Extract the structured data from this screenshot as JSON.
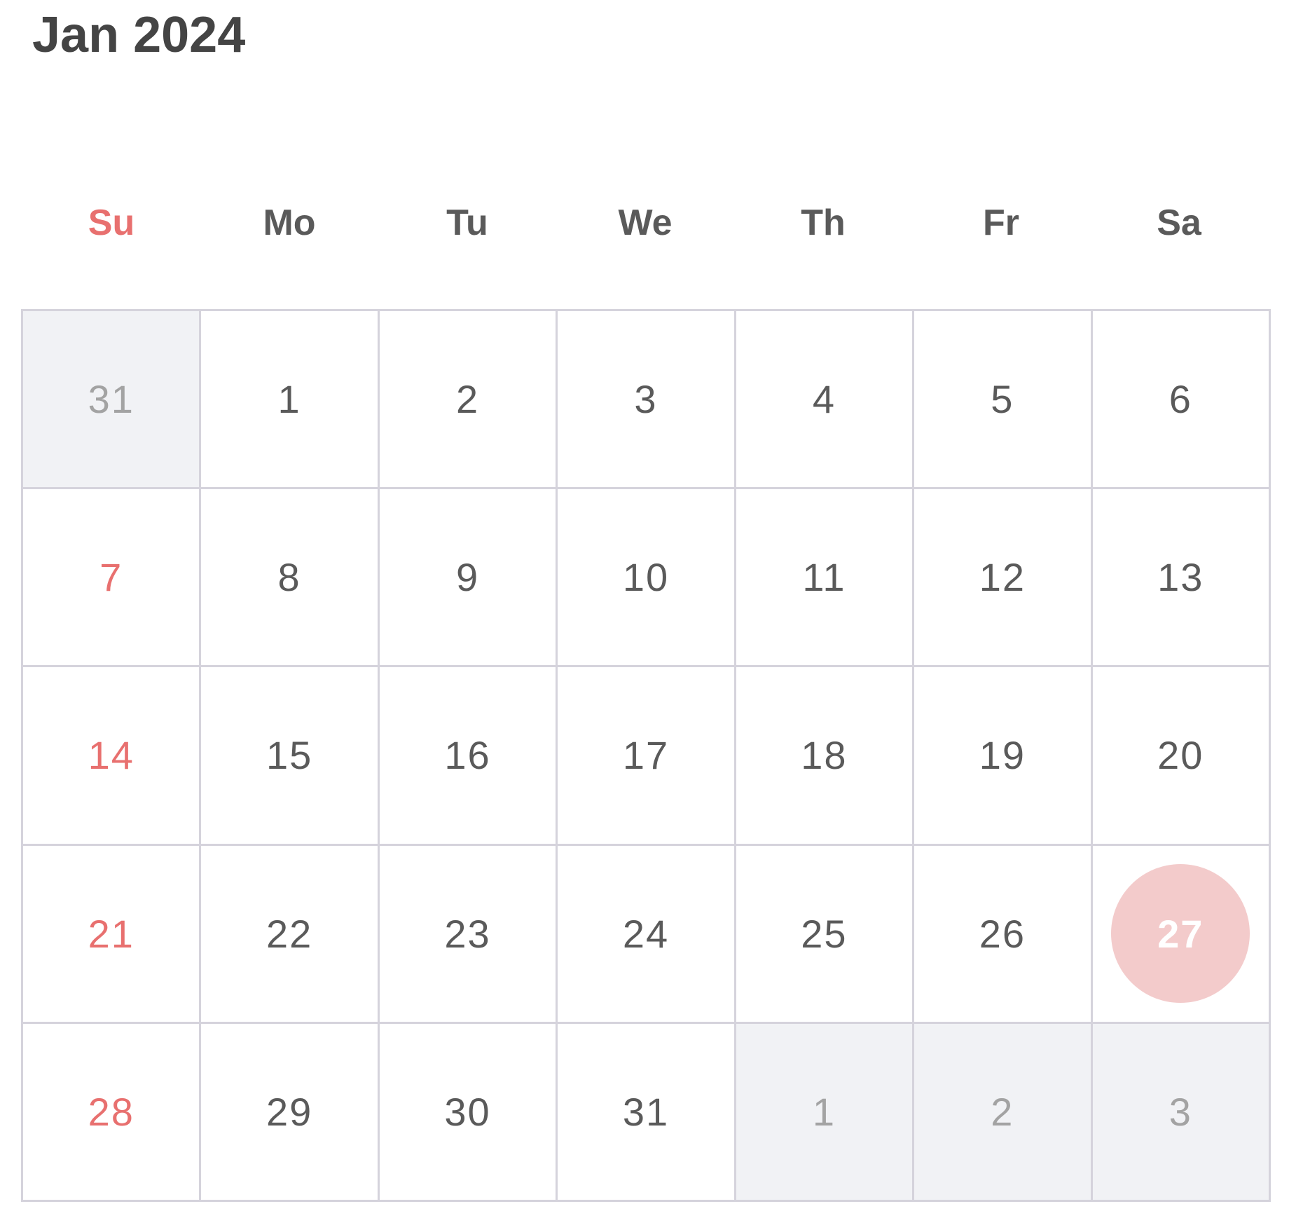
{
  "calendar": {
    "title": "Jan 2024",
    "weekdays": [
      "Su",
      "Mo",
      "Tu",
      "We",
      "Th",
      "Fr",
      "Sa"
    ],
    "selected_day": "27",
    "colors": {
      "sunday": "#e8706f",
      "selected_bg": "#f3cbcb",
      "outside_bg": "#f1f2f5",
      "grid_line": "#d5d3dc"
    },
    "weeks": [
      [
        {
          "day": "31",
          "outside": true
        },
        {
          "day": "1"
        },
        {
          "day": "2"
        },
        {
          "day": "3"
        },
        {
          "day": "4"
        },
        {
          "day": "5"
        },
        {
          "day": "6"
        }
      ],
      [
        {
          "day": "7"
        },
        {
          "day": "8"
        },
        {
          "day": "9"
        },
        {
          "day": "10"
        },
        {
          "day": "11"
        },
        {
          "day": "12"
        },
        {
          "day": "13"
        }
      ],
      [
        {
          "day": "14"
        },
        {
          "day": "15"
        },
        {
          "day": "16"
        },
        {
          "day": "17"
        },
        {
          "day": "18"
        },
        {
          "day": "19"
        },
        {
          "day": "20"
        }
      ],
      [
        {
          "day": "21"
        },
        {
          "day": "22"
        },
        {
          "day": "23"
        },
        {
          "day": "24"
        },
        {
          "day": "25"
        },
        {
          "day": "26"
        },
        {
          "day": "27",
          "selected": true
        }
      ],
      [
        {
          "day": "28"
        },
        {
          "day": "29"
        },
        {
          "day": "30"
        },
        {
          "day": "31"
        },
        {
          "day": "1",
          "outside": true
        },
        {
          "day": "2",
          "outside": true
        },
        {
          "day": "3",
          "outside": true
        }
      ]
    ]
  }
}
